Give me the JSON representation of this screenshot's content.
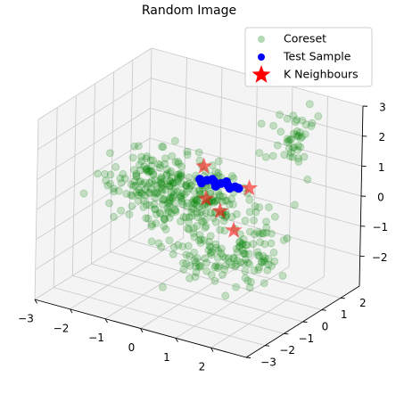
{
  "chart_data": {
    "type": "scatter",
    "projection": "3d",
    "title": "Random Image",
    "xlabel": "",
    "ylabel": "",
    "zlabel": "",
    "xlim": [
      -3,
      3
    ],
    "ylim": [
      -3,
      3
    ],
    "zlim": [
      -3,
      3
    ],
    "x_ticks": [
      "−3",
      "−2",
      "−1",
      "0",
      "1",
      "2"
    ],
    "y_ticks": [
      "−3",
      "−2",
      "−1",
      "0",
      "1",
      "2"
    ],
    "z_ticks": [
      "−2",
      "−1",
      "0",
      "1",
      "2",
      "3"
    ],
    "grid": true,
    "legend_position": "top-right",
    "series": [
      {
        "name": "Coreset",
        "marker": "circle",
        "color": "#008000",
        "alpha": 0.2,
        "clusters": [
          {
            "center": [
              -0.8,
              0.3,
              0.0
            ],
            "spread": [
              1.0,
              0.6,
              0.5
            ],
            "count": 320
          },
          {
            "center": [
              1.5,
              2.2,
              1.8
            ],
            "spread": [
              0.3,
              0.3,
              0.5
            ],
            "count": 45
          },
          {
            "center": [
              1.6,
              -0.2,
              -1.2
            ],
            "spread": [
              0.5,
              0.4,
              0.5
            ],
            "count": 70
          },
          {
            "center": [
              1.0,
              -1.6,
              -0.8
            ],
            "spread": [
              0.6,
              0.3,
              0.5
            ],
            "count": 70
          }
        ]
      },
      {
        "name": "Test Sample",
        "marker": "circle",
        "color": "#0000ff",
        "alpha": 1.0,
        "points": [
          [
            -0.3,
            0.6,
            0.45
          ],
          [
            -0.1,
            0.6,
            0.48
          ],
          [
            0.1,
            0.6,
            0.5
          ],
          [
            0.3,
            0.6,
            0.5
          ],
          [
            0.5,
            0.6,
            0.5
          ],
          [
            0.7,
            0.6,
            0.52
          ],
          [
            -0.2,
            0.5,
            0.4
          ],
          [
            0.2,
            0.5,
            0.42
          ],
          [
            0.4,
            0.7,
            0.55
          ],
          [
            0.6,
            0.5,
            0.48
          ],
          [
            0.0,
            0.7,
            0.5
          ],
          [
            0.8,
            0.6,
            0.5
          ]
        ]
      },
      {
        "name": "K Neighbours",
        "marker": "star",
        "color": "#ff0000",
        "alpha": 0.55,
        "points": [
          [
            -0.3,
            0.8,
            0.8
          ],
          [
            1.1,
            0.6,
            0.6
          ],
          [
            0.5,
            0.2,
            -0.2
          ],
          [
            1.0,
            0.0,
            -0.6
          ],
          [
            0.2,
            0.0,
            0.2
          ]
        ]
      }
    ]
  }
}
